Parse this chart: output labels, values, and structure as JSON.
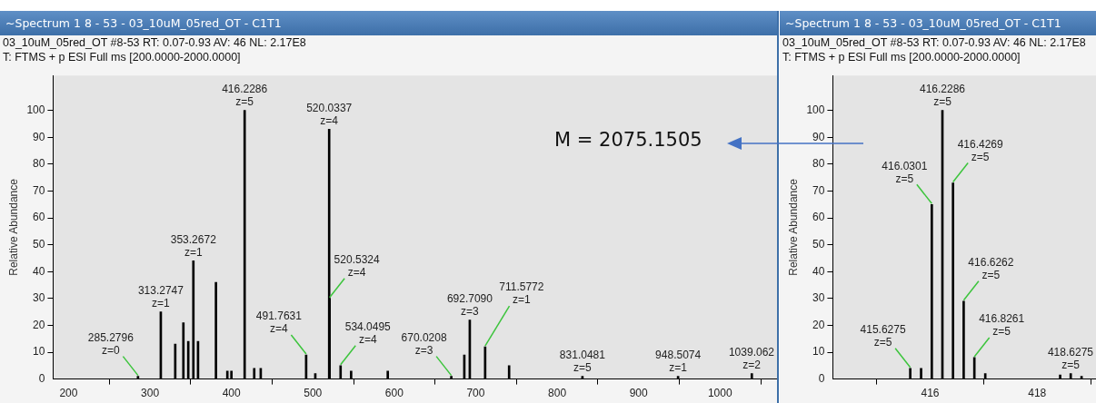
{
  "chart_data": [
    {
      "type": "bar",
      "title": "~Spectrum  1  8 - 53  - 03_10uM_05red_OT - C1T1",
      "subtitle": "03_10uM_05red_OT #8-53  RT: 0.07-0.93 AV: 46 NL: 2.17E8",
      "ylabel": "Relative Abundance",
      "x": [
        285.2796,
        313.2747,
        331,
        341,
        347,
        353.2672,
        359,
        381,
        395,
        400,
        416.2286,
        428,
        436,
        491.7631,
        503,
        520.0337,
        520.5324,
        534.0495,
        547,
        592,
        670.0208,
        686,
        692.709,
        711.5772,
        741,
        831.0481,
        948.5074,
        1039.062
      ],
      "values": [
        1,
        25,
        13,
        21,
        14,
        44,
        14,
        36,
        3,
        3,
        100,
        4,
        4,
        9,
        2,
        93,
        30,
        5,
        3,
        3,
        1,
        9,
        22,
        12,
        5,
        1,
        1,
        2
      ],
      "color": "#000000",
      "xlim": [
        181,
        1070
      ],
      "xticks": [
        200,
        300,
        400,
        500,
        600,
        700,
        800,
        900,
        1000
      ],
      "ylim": [
        0,
        113
      ],
      "yticks": [
        0,
        10,
        20,
        30,
        40,
        50,
        60,
        70,
        80,
        90,
        100
      ],
      "annotations": [
        "T: FTMS + p ESI Full ms [200.0000-2000.0000]",
        {
          "text": "285.2796\nz=0",
          "x": 285.2796,
          "y": 1
        },
        {
          "text": "313.2747\nz=1",
          "x": 313.2747,
          "y": 25
        },
        {
          "text": "353.2672\nz=1",
          "x": 353.2672,
          "y": 44
        },
        {
          "text": "416.2286\nz=5",
          "x": 416.2286,
          "y": 100
        },
        {
          "text": "491.7631\nz=4",
          "x": 491.7631,
          "y": 9
        },
        {
          "text": "520.0337\nz=4",
          "x": 520.0337,
          "y": 93
        },
        {
          "text": "520.5324\nz=4",
          "x": 520.5324,
          "y": 30
        },
        {
          "text": "534.0495\nz=4",
          "x": 534.0495,
          "y": 5
        },
        {
          "text": "670.0208\nz=3",
          "x": 670.0208,
          "y": 1
        },
        {
          "text": "692.7090\nz=3",
          "x": 692.709,
          "y": 22
        },
        {
          "text": "711.5772\nz=1",
          "x": 711.5772,
          "y": 12
        },
        {
          "text": "831.0481\nz=5",
          "x": 831.0481,
          "y": 1
        },
        {
          "text": "948.5074\nz=1",
          "x": 948.5074,
          "y": 1
        },
        {
          "text": "1039.062\nz=2",
          "x": 1039.062,
          "y": 2
        }
      ]
    },
    {
      "type": "bar",
      "title": "~Spectrum  1  8 - 53  - 03_10uM_05red_OT - C1T1",
      "subtitle": "03_10uM_05red_OT #8-53  RT: 0.07-0.93 AV: 46 NL: 2.17E8",
      "ylabel": "Relative Abundance",
      "x": [
        415.6275,
        415.83,
        416.0301,
        416.2286,
        416.4269,
        416.6262,
        416.8261,
        417.03,
        418.43,
        418.6275,
        418.83
      ],
      "values": [
        4,
        4,
        65,
        100,
        73,
        29,
        8,
        2,
        1.5,
        2,
        1
      ],
      "color": "#000000",
      "xlim": [
        414.18,
        419.1
      ],
      "xticks": [
        416,
        418
      ],
      "ylim": [
        0,
        113
      ],
      "yticks": [
        0,
        10,
        20,
        30,
        40,
        50,
        60,
        70,
        80,
        90,
        100
      ],
      "annotations": [
        "T: FTMS + p ESI Full ms [200.0000-2000.0000]",
        "M = 2075.1505",
        {
          "text": "415.6275\nz=5",
          "x": 415.6275,
          "y": 4
        },
        {
          "text": "416.0301\nz=5",
          "x": 416.0301,
          "y": 65
        },
        {
          "text": "416.2286\nz=5",
          "x": 416.2286,
          "y": 100
        },
        {
          "text": "416.4269\nz=5",
          "x": 416.4269,
          "y": 73
        },
        {
          "text": "416.6262\nz=5",
          "x": 416.6262,
          "y": 29
        },
        {
          "text": "416.8261\nz=5",
          "x": 416.8261,
          "y": 8
        },
        {
          "text": "418.6275\nz=5",
          "x": 418.6275,
          "y": 2
        }
      ]
    }
  ]
}
